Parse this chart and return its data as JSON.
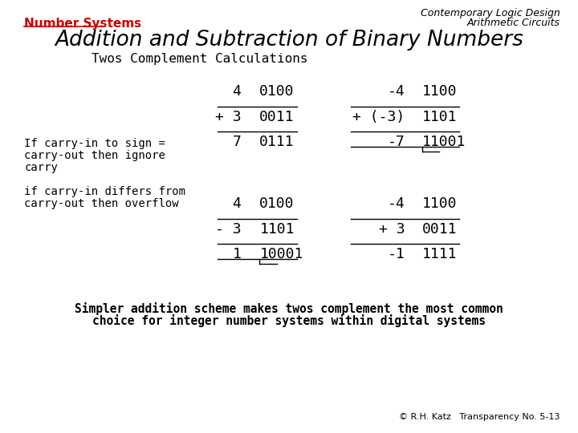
{
  "bg_color": "#ffffff",
  "top_left_label": "Number Systems",
  "top_left_color": "#cc0000",
  "top_right_line1": "Contemporary Logic Design",
  "top_right_line2": "Arithmetic Circuits",
  "title": "Addition and Subtraction of Binary Numbers",
  "subtitle": "Twos Complement Calculations",
  "rows_top": [
    {
      "col1": "4",
      "col2": "0100",
      "col3": "-4",
      "col4": "1100",
      "line_above": false
    },
    {
      "col1": "+ 3",
      "col2": "0011",
      "col3": "+ (-3)",
      "col4": "1101",
      "line_above": true
    },
    {
      "col1": "7",
      "col2": "0111",
      "col3": "-7",
      "col4": "11001",
      "line_above": false
    }
  ],
  "rows_bot": [
    {
      "col1": "4",
      "col2": "0100",
      "col3": "-4",
      "col4": "1100",
      "line_above": false
    },
    {
      "col1": "- 3",
      "col2": "1101",
      "col3": "+ 3",
      "col4": "0011",
      "line_above": true
    },
    {
      "col1": "1",
      "col2": "10001",
      "col3": "-1",
      "col4": "1111",
      "line_above": false
    }
  ],
  "note1_line1": "If carry-in to sign =",
  "note1_line2": "carry-out then ignore",
  "note1_line3": "carry",
  "note2_line1": "if carry-in differs from",
  "note2_line2": "carry-out then overflow",
  "footer_line1": "Simpler addition scheme makes twos complement the most common",
  "footer_line2": "choice for integer number systems within digital systems",
  "copyright": "© R.H. Katz   Transparency No. 5-13"
}
